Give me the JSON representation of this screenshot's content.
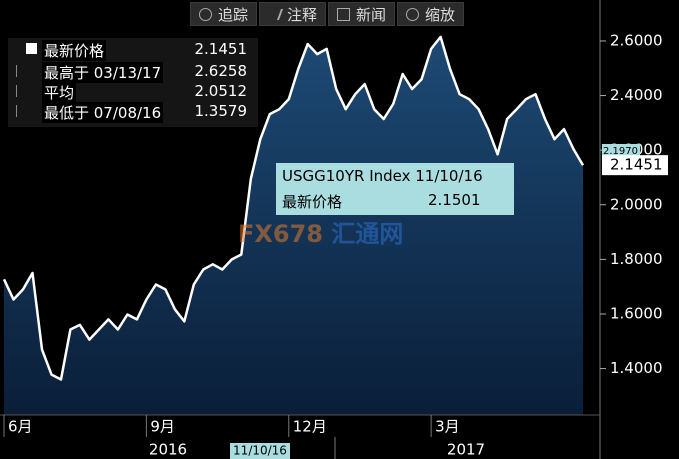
{
  "chart_data": {
    "type": "area",
    "categories": [
      "6月",
      null,
      null,
      null,
      null,
      null,
      null,
      null,
      null,
      null,
      null,
      null,
      null,
      null,
      null,
      "9月",
      null,
      null,
      null,
      null,
      null,
      null,
      null,
      null,
      null,
      null,
      null,
      null,
      null,
      null,
      "12月",
      null,
      null,
      null,
      null,
      null,
      null,
      null,
      null,
      null,
      null,
      null,
      null,
      null,
      null,
      "3月",
      null,
      null,
      null,
      null,
      null,
      null,
      null,
      null,
      null,
      null,
      null,
      null,
      null,
      null,
      null,
      null
    ],
    "values": [
      1.727,
      1.653,
      1.69,
      1.75,
      1.47,
      1.378,
      1.36,
      1.543,
      1.56,
      1.506,
      1.543,
      1.58,
      1.543,
      1.598,
      1.58,
      1.653,
      1.708,
      1.69,
      1.617,
      1.573,
      1.708,
      1.763,
      1.782,
      1.763,
      1.8,
      1.818,
      2.094,
      2.24,
      2.332,
      2.35,
      2.387,
      2.497,
      2.589,
      2.552,
      2.571,
      2.424,
      2.35,
      2.405,
      2.442,
      2.35,
      2.314,
      2.369,
      2.479,
      2.424,
      2.46,
      2.571,
      2.615,
      2.497,
      2.405,
      2.387,
      2.35,
      2.277,
      2.185,
      2.314,
      2.35,
      2.387,
      2.405,
      2.314,
      2.24,
      2.277,
      2.204,
      2.1451
    ],
    "years": [
      "2016",
      "2017"
    ],
    "color": "#ffffff",
    "ylim": [
      1.23,
      2.75
    ],
    "yticks": [
      {
        "value": 1.4,
        "label": "1.4000"
      },
      {
        "value": 1.6,
        "label": "1.6000"
      },
      {
        "value": 1.8,
        "label": "1.8000"
      },
      {
        "value": 2.0,
        "label": "2.0000"
      },
      {
        "value": 2.2,
        "label": "2.2000"
      },
      {
        "value": 2.4,
        "label": "2.4000"
      },
      {
        "value": 2.6,
        "label": "2.6000"
      }
    ],
    "markers": [
      {
        "value": 2.197,
        "label": "2.1970"
      },
      {
        "value": 2.1451,
        "label": "2.1451"
      }
    ],
    "selected_date": "11/10/16"
  },
  "toolbar": [
    "追踪",
    "注释",
    "新闻",
    "缩放"
  ],
  "legend": [
    {
      "label": "最新价格",
      "value": 2.1451
    },
    {
      "label": "最高于 03/13/17",
      "value": 2.6258
    },
    {
      "label": "平均",
      "value": 2.0512
    },
    {
      "label": "最低于 07/08/16",
      "value": 1.3579
    }
  ],
  "tooltip": {
    "title": "USGG10YR Index 11/10/16",
    "label": "最新价格",
    "value": 2.1501
  },
  "watermark": [
    "FX678",
    "汇通网"
  ]
}
